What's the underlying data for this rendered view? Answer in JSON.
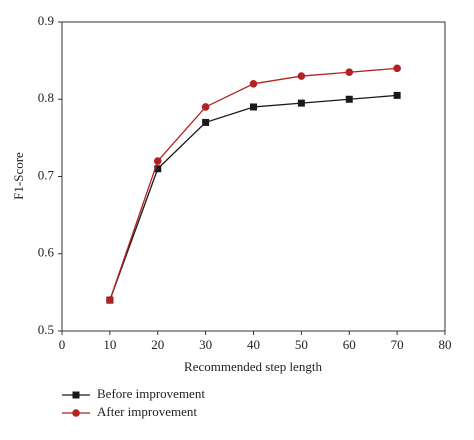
{
  "chart_data": {
    "type": "line",
    "xlabel": "Recommended step length",
    "ylabel": "F1-Score",
    "x": [
      10,
      20,
      30,
      40,
      50,
      60,
      70
    ],
    "series": [
      {
        "name": "Before improvement",
        "color": "#1a1a1a",
        "marker": "square",
        "values": [
          0.54,
          0.71,
          0.77,
          0.79,
          0.795,
          0.8,
          0.805
        ]
      },
      {
        "name": "After improvement",
        "color": "#b22222",
        "marker": "circle",
        "values": [
          0.54,
          0.72,
          0.79,
          0.82,
          0.83,
          0.835,
          0.84
        ]
      }
    ],
    "xlim": [
      0,
      80
    ],
    "xticks": [
      0,
      10,
      20,
      30,
      40,
      50,
      60,
      70,
      80
    ],
    "ylim": [
      0.5,
      0.9
    ],
    "yticks": [
      0.5,
      0.6,
      0.7,
      0.8,
      0.9
    ],
    "legend": "bottom-left",
    "grid": false
  }
}
